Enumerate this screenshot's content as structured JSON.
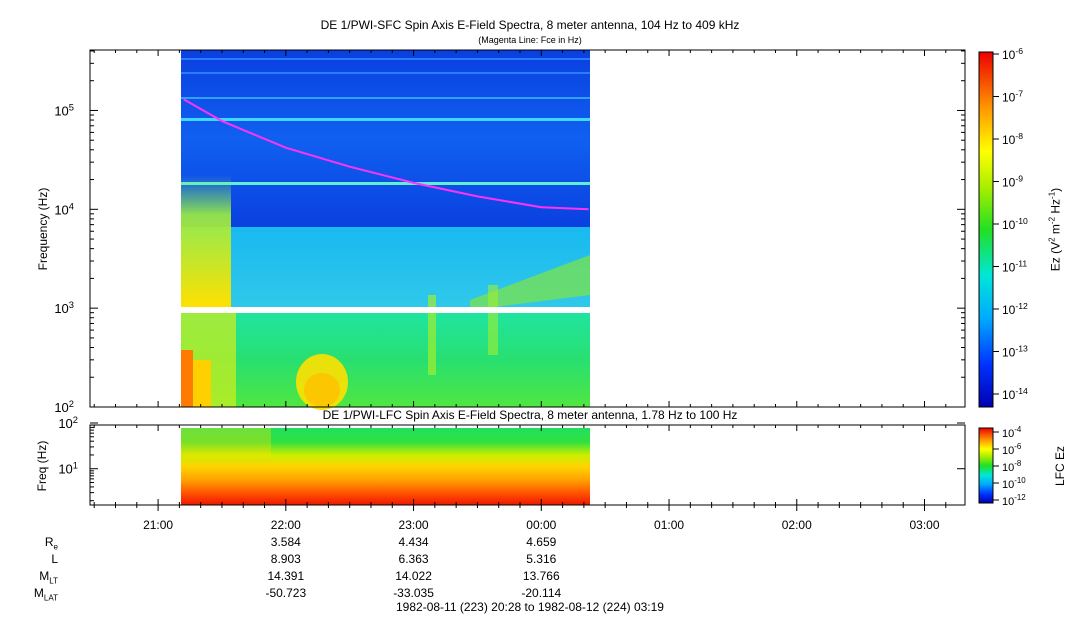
{
  "chart_data": [
    {
      "type": "heatmap",
      "title": "DE 1/PWI-SFC  Spin Axis E-Field Spectra, 8 meter antenna, 104 Hz to 409 kHz",
      "subtitle": "(Magenta Line: Fce in Hz)",
      "xlabel": "",
      "ylabel": "Frequency (Hz)",
      "yscale": "log",
      "ylim": [
        100,
        409000
      ],
      "yticks": [
        {
          "base": "10",
          "exp": "2"
        },
        {
          "base": "10",
          "exp": "3"
        },
        {
          "base": "10",
          "exp": "4"
        },
        {
          "base": "10",
          "exp": "5"
        }
      ],
      "xlim_hours": [
        20.467,
        27.317
      ],
      "data_coverage_hours": [
        21.2,
        24.37
      ],
      "data_gap_hz": [
        930,
        1030
      ],
      "fce_line": {
        "color": "#ff33ff",
        "x_hours": [
          21.2,
          21.5,
          22.0,
          22.5,
          23.0,
          23.5,
          24.0,
          24.37
        ],
        "hz": [
          130000,
          78000,
          42000,
          27000,
          18500,
          13500,
          10500,
          10000
        ]
      },
      "colorbar": {
        "label_pre": "Ez (V",
        "label_sq": "2",
        "label_mid": " m",
        "label_m2": "-2",
        "label_hz": " Hz",
        "label_m1": "-1",
        "label_post": ")",
        "ticks": [
          {
            "base": "10",
            "exp": "-6"
          },
          {
            "base": "10",
            "exp": "-7"
          },
          {
            "base": "10",
            "exp": "-8"
          },
          {
            "base": "10",
            "exp": "-9"
          },
          {
            "base": "10",
            "exp": "-10"
          },
          {
            "base": "10",
            "exp": "-11"
          },
          {
            "base": "10",
            "exp": "-12"
          },
          {
            "base": "10",
            "exp": "-13"
          },
          {
            "base": "10",
            "exp": "-14"
          }
        ]
      }
    },
    {
      "type": "heatmap",
      "title": "DE 1/PWI-LFC  Spin Axis E-Field Spectra, 8 meter antenna, 1.78 Hz to 100 Hz",
      "ylabel": "Freq (Hz)",
      "yscale": "log",
      "ylim": [
        1.78,
        100
      ],
      "yticks": [
        {
          "base": "10",
          "exp": "1"
        },
        {
          "base": "10",
          "exp": "2"
        }
      ],
      "xlim_hours": [
        20.467,
        27.317
      ],
      "data_coverage_hours": [
        21.2,
        24.37
      ],
      "colorbar": {
        "label": "LFC Ez",
        "ticks": [
          {
            "base": "10",
            "exp": "-4"
          },
          {
            "base": "10",
            "exp": "-6"
          },
          {
            "base": "10",
            "exp": "-8"
          },
          {
            "base": "10",
            "exp": "-10"
          },
          {
            "base": "10",
            "exp": "-12"
          }
        ]
      }
    }
  ],
  "time_axis": {
    "ticks": [
      {
        "label": "21:00",
        "hours": 21
      },
      {
        "label": "22:00",
        "hours": 22
      },
      {
        "label": "23:00",
        "hours": 23
      },
      {
        "label": "00:00",
        "hours": 24
      },
      {
        "label": "01:00",
        "hours": 25
      },
      {
        "label": "02:00",
        "hours": 26
      },
      {
        "label": "03:00",
        "hours": 27
      }
    ]
  },
  "ephemeris": {
    "rows": [
      {
        "label": "R",
        "sub": "e",
        "values": [
          "3.584",
          "4.434",
          "4.659"
        ]
      },
      {
        "label": "L",
        "sub": "",
        "values": [
          "8.903",
          "6.363",
          "5.316"
        ]
      },
      {
        "label": "M",
        "sub": "LT",
        "values": [
          "14.391",
          "14.022",
          "13.766"
        ]
      },
      {
        "label": "M",
        "sub": "LAT",
        "values": [
          "-50.723",
          "-33.035",
          "-20.114"
        ]
      }
    ]
  },
  "time_range": "1982-08-11 (223) 20:28 to 1982-08-12 (224) 03:19"
}
